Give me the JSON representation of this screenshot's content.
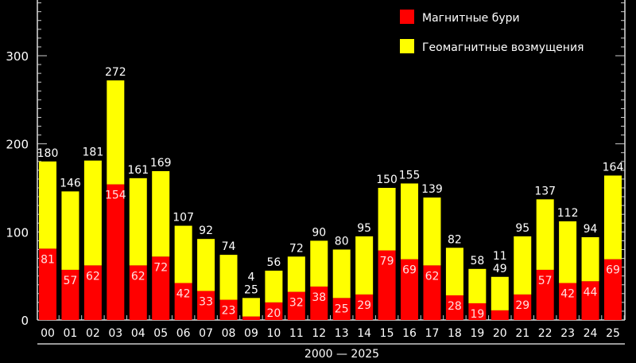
{
  "chart_data": {
    "type": "bar",
    "stacked": true,
    "title": "",
    "xlabel": "2000 — 2025",
    "ylabel": "",
    "ylim": [
      0,
      360
    ],
    "yticks": [
      0,
      100,
      200,
      300
    ],
    "grid": false,
    "legend_position": "top-right",
    "categories": [
      "00",
      "01",
      "02",
      "03",
      "04",
      "05",
      "06",
      "07",
      "08",
      "09",
      "10",
      "11",
      "12",
      "13",
      "14",
      "15",
      "16",
      "17",
      "18",
      "19",
      "20",
      "21",
      "22",
      "23",
      "24",
      "25"
    ],
    "totals": [
      180,
      146,
      181,
      272,
      161,
      169,
      107,
      92,
      74,
      25,
      56,
      72,
      90,
      80,
      95,
      150,
      155,
      139,
      82,
      58,
      49,
      95,
      137,
      112,
      94,
      164
    ],
    "series": [
      {
        "name": "Магнитные бури",
        "color": "#ff0000",
        "values": [
          81,
          57,
          62,
          154,
          62,
          72,
          42,
          33,
          23,
          4,
          20,
          32,
          38,
          25,
          29,
          79,
          69,
          62,
          28,
          19,
          11,
          29,
          57,
          42,
          44,
          69
        ]
      },
      {
        "name": "Геомагнитные возмущения",
        "color": "#ffff00",
        "values": [
          99,
          89,
          119,
          118,
          99,
          97,
          65,
          59,
          51,
          21,
          36,
          40,
          52,
          55,
          66,
          71,
          86,
          77,
          54,
          39,
          38,
          66,
          80,
          70,
          50,
          95
        ]
      }
    ]
  }
}
